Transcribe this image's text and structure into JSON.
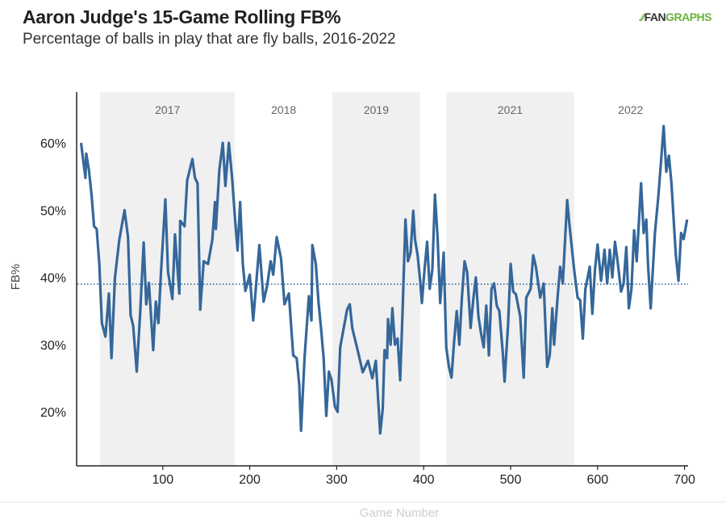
{
  "chart_data": {
    "type": "line",
    "title": "Aaron Judge's 15-Game Rolling FB%",
    "subtitle": "Percentage of balls in play that are fly balls, 2016-2022",
    "xlabel": "Game Number",
    "ylabel": "FB%",
    "xlim": [
      0,
      705
    ],
    "ylim": [
      12,
      67.5
    ],
    "xticks": [
      100,
      200,
      300,
      400,
      500,
      600,
      700
    ],
    "yticks": [
      20,
      30,
      40,
      50,
      60
    ],
    "ytick_labels": [
      "20%",
      "30%",
      "40%",
      "50%",
      "60%"
    ],
    "grid": false,
    "reference_line": {
      "value": 39,
      "style": "dotted"
    },
    "line_color": "#35679a",
    "shade_color": "#f0f0f0",
    "seasons": [
      {
        "label": "2017",
        "start": 28,
        "end": 183,
        "shaded": true
      },
      {
        "label": "2018",
        "start": 183,
        "end": 295,
        "shaded": false
      },
      {
        "label": "2019",
        "start": 295,
        "end": 396,
        "shaded": true
      },
      {
        "label": "2021",
        "start": 426,
        "end": 573,
        "shaded": true
      },
      {
        "label": "2022",
        "start": 573,
        "end": 703,
        "shaded": false
      }
    ],
    "series": [
      {
        "x": [
          6,
          11,
          12,
          15,
          18,
          21,
          24,
          27,
          30,
          34,
          38,
          41,
          45,
          50,
          56,
          60,
          63,
          66,
          70,
          74,
          78,
          81,
          84,
          89,
          92,
          95,
          98,
          103,
          106,
          111,
          114,
          119,
          120,
          125,
          128,
          134,
          137,
          140,
          143,
          147,
          152,
          157,
          160,
          161,
          165,
          169,
          172,
          176,
          180,
          183,
          186,
          189,
          192,
          195,
          200,
          204,
          211,
          216,
          220,
          224,
          227,
          231,
          236,
          240,
          245,
          250,
          254,
          257,
          259,
          263,
          268,
          271,
          272,
          276,
          279,
          282,
          285,
          288,
          291,
          294,
          298,
          301,
          304,
          312,
          315,
          318,
          324,
          330,
          336,
          341,
          345,
          350,
          353,
          355,
          358,
          359,
          362,
          364,
          367,
          370,
          373,
          376,
          379,
          382,
          385,
          388,
          390,
          393,
          396,
          398,
          401,
          404,
          407,
          410,
          413,
          416,
          419,
          423,
          426,
          429,
          432,
          435,
          438,
          441,
          444,
          447,
          450,
          454,
          457,
          460,
          463,
          466,
          469,
          472,
          475,
          478,
          481,
          484,
          487,
          491,
          493,
          497,
          500,
          503,
          506,
          511,
          515,
          518,
          523,
          526,
          529,
          534,
          538,
          542,
          545,
          548,
          550,
          554,
          557,
          560,
          565,
          568,
          573,
          577,
          580,
          583,
          586,
          591,
          594,
          597,
          600,
          604,
          608,
          611,
          614,
          617,
          620,
          623,
          627,
          630,
          633,
          636,
          639,
          642,
          645,
          650,
          653,
          656,
          658,
          661,
          666,
          670,
          673,
          676,
          679,
          682,
          685,
          690,
          693,
          696,
          699,
          703
        ],
        "y": [
          60,
          54.8,
          58.4,
          56,
          52.4,
          47.6,
          47.2,
          42,
          33.2,
          31.2,
          37.6,
          28,
          40,
          45.6,
          50,
          46,
          34.4,
          32.8,
          26,
          34.8,
          45.2,
          36,
          39.2,
          29.2,
          36.4,
          33.2,
          40.8,
          51.6,
          40.8,
          36.8,
          46.4,
          37.6,
          48.4,
          47.6,
          54.4,
          57.6,
          54.8,
          54,
          35.2,
          42.4,
          42,
          45.6,
          51.2,
          47.2,
          56,
          60,
          53.6,
          60,
          54.4,
          48.8,
          44,
          51.2,
          42,
          38,
          40.4,
          33.6,
          44.8,
          36.4,
          38.8,
          42.4,
          40.4,
          46,
          42.8,
          36,
          37.6,
          28.4,
          28,
          24,
          17.2,
          28,
          37.2,
          33.6,
          44.8,
          42,
          36.4,
          32.4,
          28,
          19.4,
          26,
          24.8,
          20.8,
          20,
          29.6,
          35.2,
          36,
          32.4,
          29.2,
          25.9,
          27.6,
          25,
          27.6,
          16.8,
          20.5,
          29.2,
          28,
          33.8,
          30,
          35.4,
          30,
          30.9,
          24.7,
          35.8,
          48.6,
          42.4,
          43.7,
          49.9,
          45.7,
          43.3,
          39.5,
          36.2,
          41.2,
          45.3,
          38.3,
          41.2,
          52.3,
          46.1,
          36.2,
          43.7,
          29.6,
          26.7,
          25.1,
          30.4,
          35,
          30,
          37,
          42.4,
          40.8,
          32.5,
          36.6,
          40,
          34.2,
          31.7,
          29.6,
          35.8,
          28.4,
          38.3,
          39.1,
          35.8,
          35,
          28.8,
          24.5,
          32.9,
          42,
          37.9,
          37.5,
          34.2,
          25.1,
          37,
          38.3,
          43.3,
          41.6,
          37,
          39.1,
          26.7,
          28.4,
          35.4,
          30,
          37,
          41.6,
          39.1,
          51.5,
          47.4,
          41.2,
          37,
          36.6,
          30.9,
          38.3,
          41.6,
          34.6,
          41.2,
          44.9,
          39.5,
          44.1,
          39.1,
          44.1,
          40,
          45.3,
          42.4,
          37.9,
          39.1,
          44.5,
          35.4,
          38.3,
          47,
          42.4,
          54,
          46.6,
          48.6,
          42,
          35.4,
          46.6,
          52.3,
          57.3,
          62.5,
          55.7,
          58.1,
          54,
          43.3,
          39.5,
          46.6,
          45.7,
          48.6
        ]
      }
    ]
  },
  "logo": {
    "text": "FANGRAPHS",
    "part1": "FAN",
    "part2": "GRAPHS",
    "color": "#6cb33f"
  }
}
